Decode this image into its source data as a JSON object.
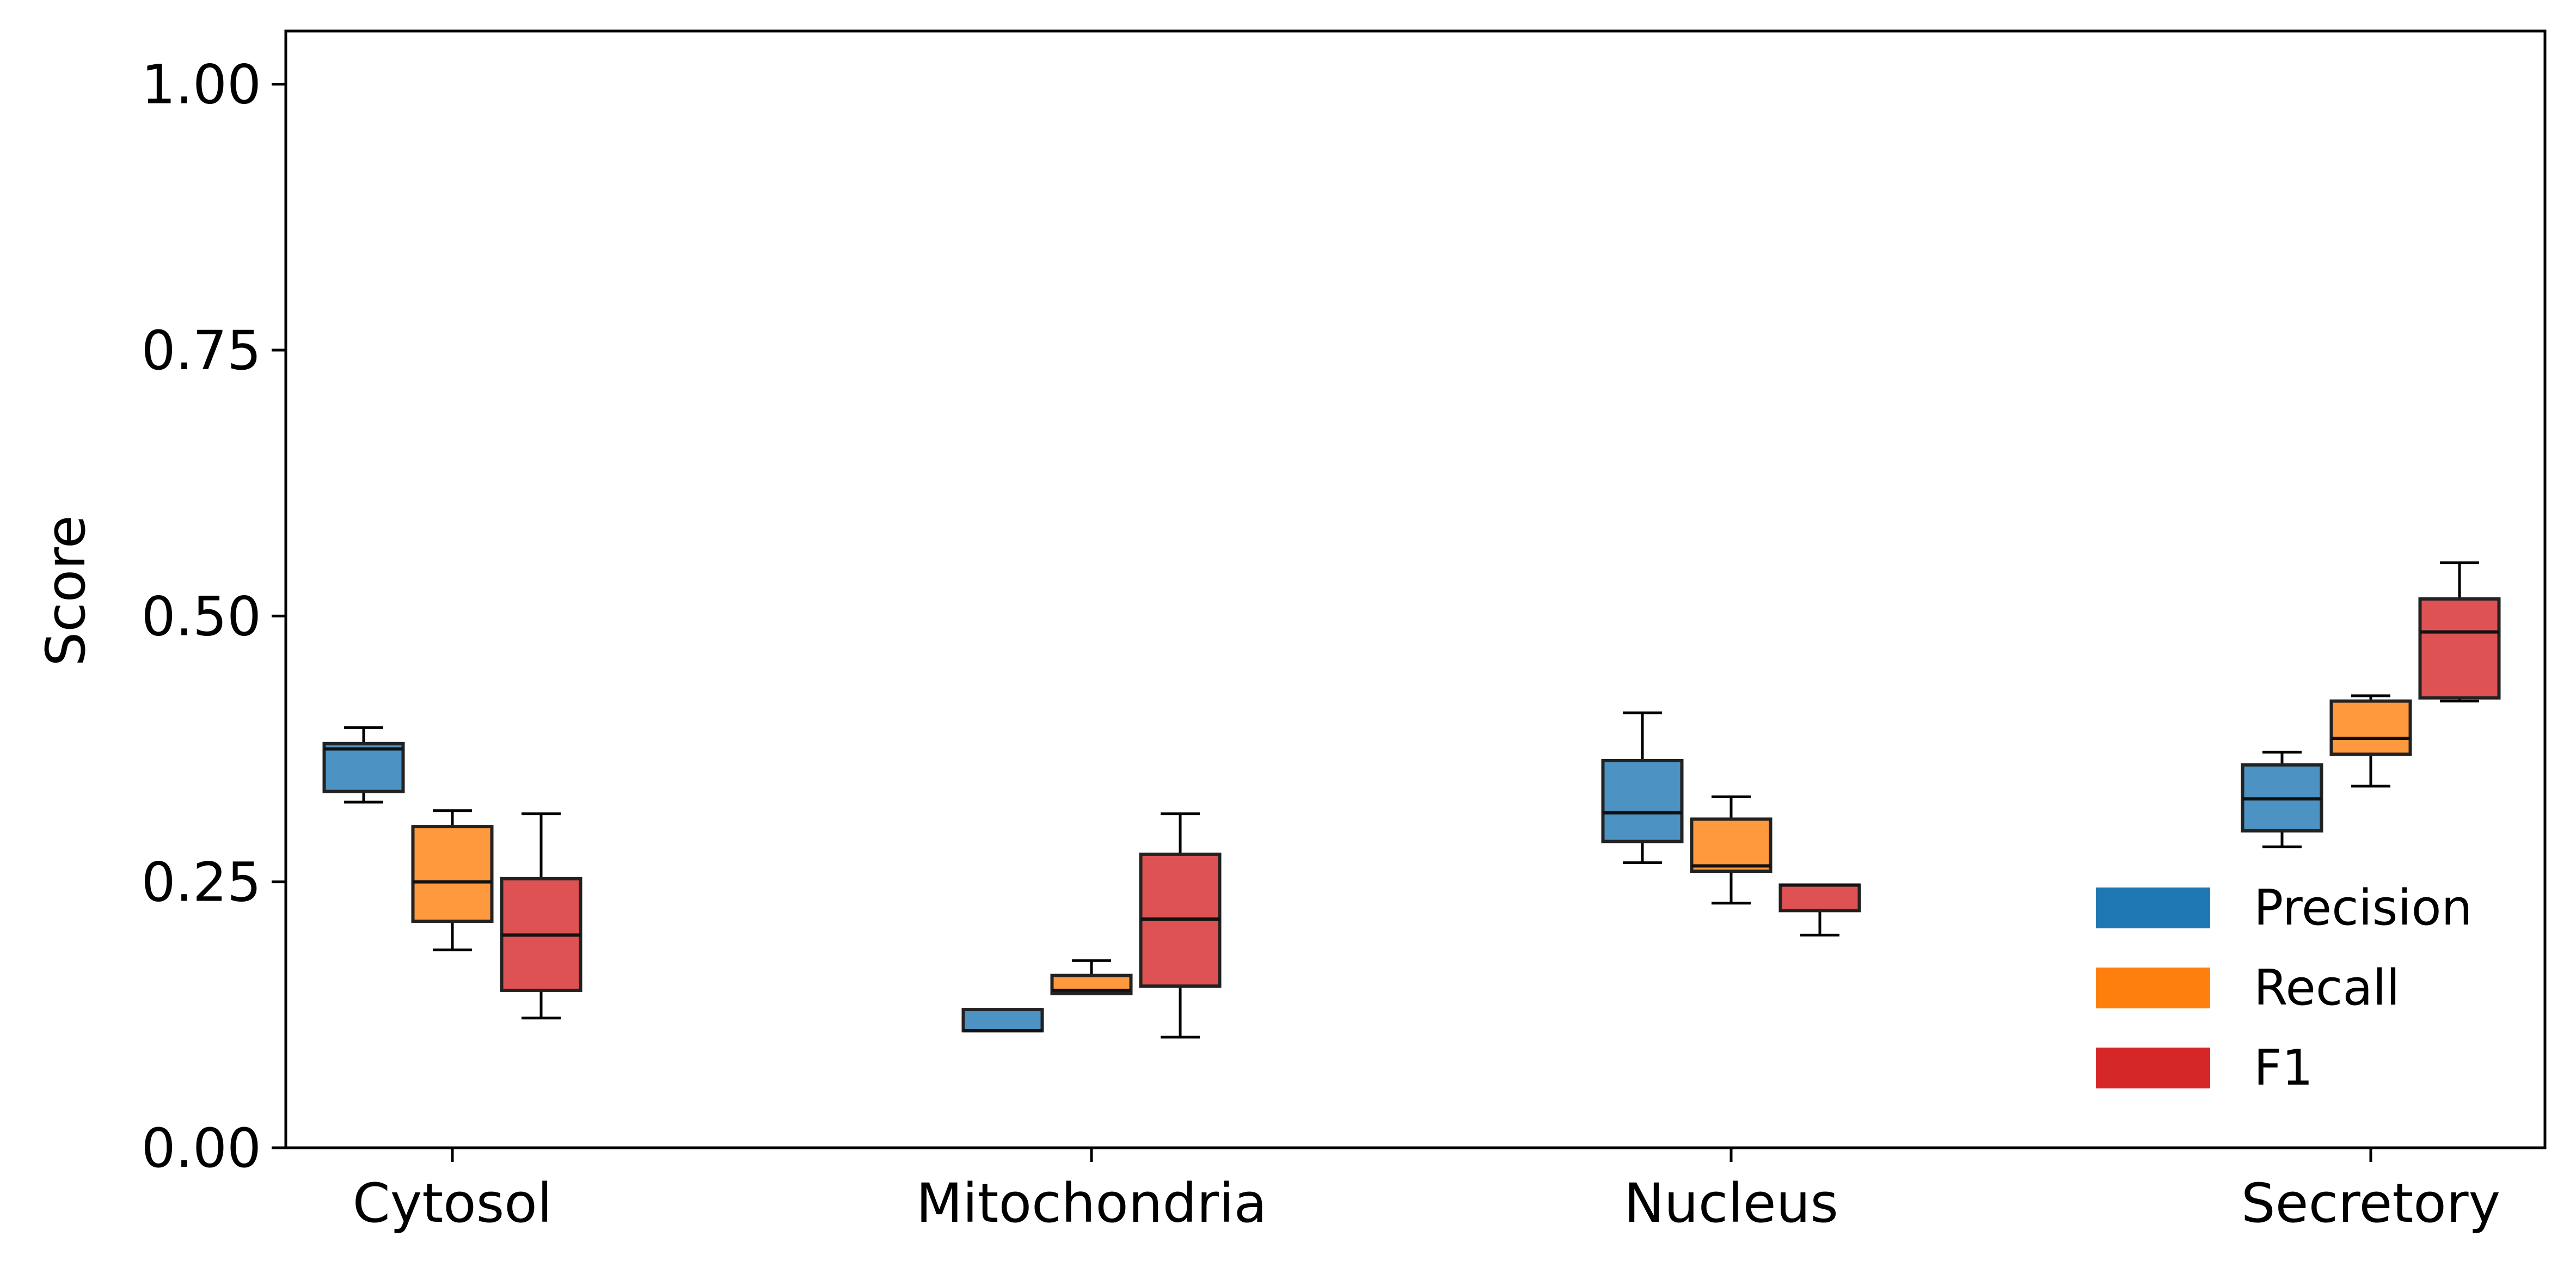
{
  "chart_data": {
    "type": "box",
    "title": "",
    "xlabel": "",
    "ylabel": "Score",
    "ylim": [
      0,
      1.05
    ],
    "yticks": [
      0.0,
      0.25,
      0.5,
      0.75,
      1.0
    ],
    "ytick_labels": [
      "0.00",
      "0.25",
      "0.50",
      "0.75",
      "1.00"
    ],
    "grid": false,
    "legend_position": "bottom-right",
    "categories": [
      "Cytosol",
      "Mitochondria",
      "Nucleus",
      "Secretory"
    ],
    "series": [
      {
        "name": "Precision",
        "color": "#1f77b4",
        "boxes": [
          {
            "whisker_low": 0.325,
            "q1": 0.335,
            "median": 0.375,
            "q3": 0.38,
            "whisker_high": 0.395
          },
          {
            "whisker_low": 0.11,
            "q1": 0.11,
            "median": 0.11,
            "q3": 0.13,
            "whisker_high": 0.13
          },
          {
            "whisker_low": 0.268,
            "q1": 0.288,
            "median": 0.315,
            "q3": 0.364,
            "whisker_high": 0.409
          },
          {
            "whisker_low": 0.283,
            "q1": 0.298,
            "median": 0.328,
            "q3": 0.36,
            "whisker_high": 0.372
          }
        ]
      },
      {
        "name": "Recall",
        "color": "#ff7f0e",
        "boxes": [
          {
            "whisker_low": 0.186,
            "q1": 0.213,
            "median": 0.25,
            "q3": 0.302,
            "whisker_high": 0.317
          },
          {
            "whisker_low": 0.145,
            "q1": 0.145,
            "median": 0.148,
            "q3": 0.162,
            "whisker_high": 0.176
          },
          {
            "whisker_low": 0.23,
            "q1": 0.26,
            "median": 0.265,
            "q3": 0.309,
            "whisker_high": 0.33
          },
          {
            "whisker_low": 0.34,
            "q1": 0.37,
            "median": 0.385,
            "q3": 0.42,
            "whisker_high": 0.425
          }
        ]
      },
      {
        "name": "F1",
        "color": "#d62728",
        "boxes": [
          {
            "whisker_low": 0.122,
            "q1": 0.148,
            "median": 0.2,
            "q3": 0.253,
            "whisker_high": 0.314
          },
          {
            "whisker_low": 0.104,
            "q1": 0.152,
            "median": 0.215,
            "q3": 0.276,
            "whisker_high": 0.314
          },
          {
            "whisker_low": 0.2,
            "q1": 0.223,
            "median": 0.247,
            "q3": 0.247,
            "whisker_high": 0.247
          },
          {
            "whisker_low": 0.42,
            "q1": 0.423,
            "median": 0.485,
            "q3": 0.516,
            "whisker_high": 0.55
          }
        ]
      }
    ]
  }
}
